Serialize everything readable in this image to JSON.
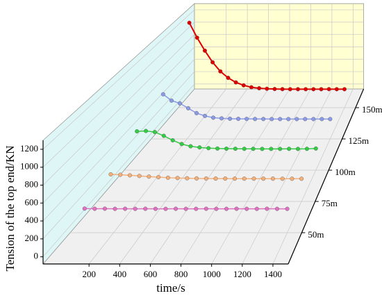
{
  "chart_data": {
    "type": "waterfall3d",
    "x_label": "time/s",
    "y_label": "Tension of the top end/KN",
    "x": [
      0,
      70,
      140,
      210,
      280,
      350,
      420,
      490,
      560,
      630,
      700,
      770,
      840,
      910,
      980,
      1050,
      1120,
      1190,
      1260,
      1330,
      1400
    ],
    "series": [
      {
        "z": 50,
        "color": "#e070c0",
        "values": [
          205,
          203,
          204,
          202,
          203,
          202,
          203,
          202,
          202,
          203,
          202,
          202,
          203,
          202,
          202,
          203,
          202,
          202,
          203,
          202,
          202
        ]
      },
      {
        "z": 75,
        "color": "#f5b07a",
        "values": [
          260,
          255,
          248,
          240,
          232,
          225,
          218,
          214,
          211,
          209,
          208,
          207,
          207,
          206,
          206,
          206,
          206,
          206,
          205,
          205,
          205
        ]
      },
      {
        "z": 100,
        "color": "#33cc44",
        "values": [
          440,
          445,
          430,
          380,
          320,
          270,
          240,
          225,
          215,
          210,
          208,
          207,
          206,
          206,
          205,
          205,
          205,
          206,
          205,
          206,
          210
        ]
      },
      {
        "z": 125,
        "color": "#8c9be8",
        "values": [
          560,
          470,
          430,
          360,
          290,
          250,
          225,
          215,
          210,
          208,
          207,
          206,
          206,
          205,
          205,
          205,
          205,
          205,
          205,
          205,
          205
        ]
      },
      {
        "z": 150,
        "color": "#e00000",
        "values": [
          1230,
          1000,
          800,
          620,
          480,
          380,
          310,
          265,
          235,
          220,
          212,
          208,
          206,
          205,
          205,
          205,
          205,
          205,
          206,
          205,
          205
        ]
      }
    ],
    "xlim": [
      -100,
      1500
    ],
    "xticks": [
      200,
      400,
      600,
      800,
      1000,
      1200,
      1400
    ],
    "ylim": [
      -80,
      1300
    ],
    "yticks": [
      0,
      200,
      400,
      600,
      800,
      1000,
      1200
    ],
    "zlim": [
      25,
      165
    ],
    "zticks": [
      {
        "value": 50,
        "label": "50m"
      },
      {
        "value": 75,
        "label": "75m"
      },
      {
        "value": 100,
        "label": "100m"
      },
      {
        "value": 125,
        "label": "125m"
      },
      {
        "value": 150,
        "label": "150m"
      }
    ],
    "grid": true
  }
}
